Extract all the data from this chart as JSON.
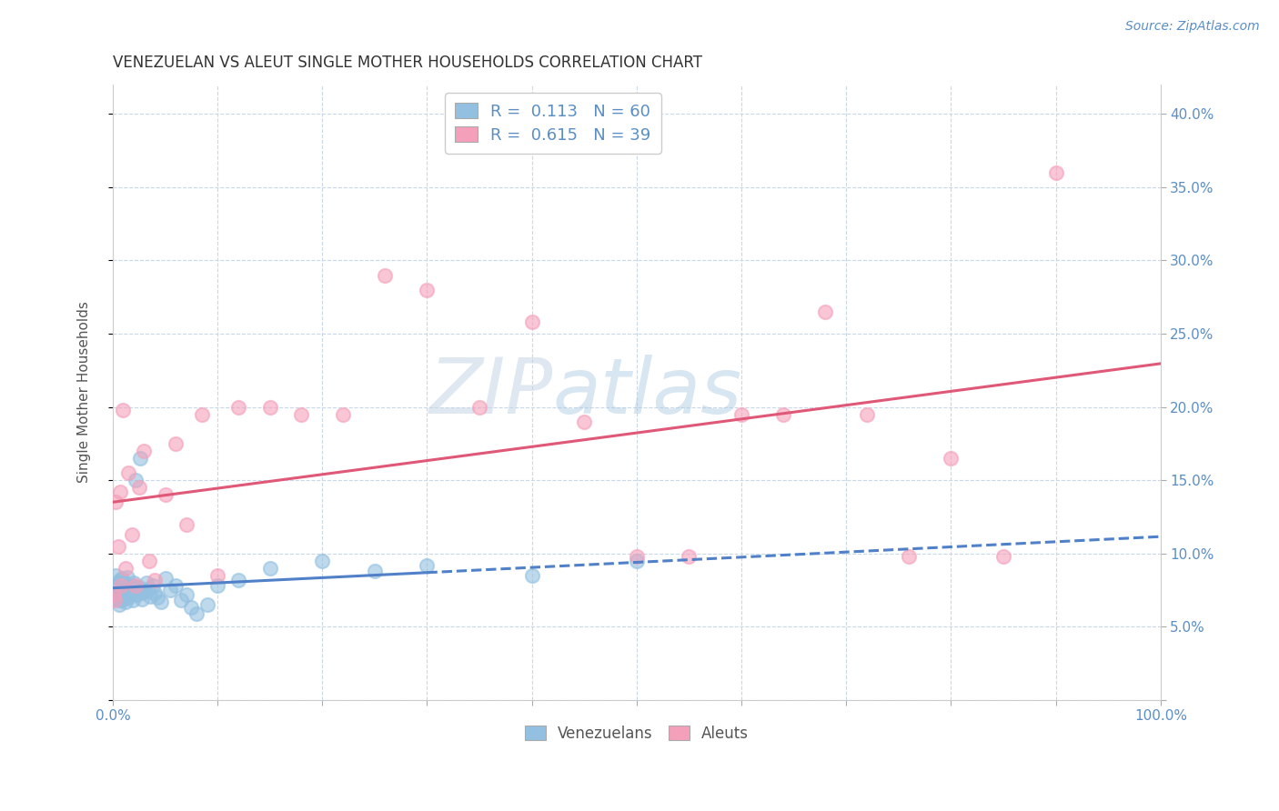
{
  "title": "VENEZUELAN VS ALEUT SINGLE MOTHER HOUSEHOLDS CORRELATION CHART",
  "source": "Source: ZipAtlas.com",
  "ylabel": "Single Mother Households",
  "xlim": [
    0.0,
    1.0
  ],
  "ylim": [
    0.0,
    0.42
  ],
  "xticks": [
    0.0,
    0.1,
    0.2,
    0.3,
    0.4,
    0.5,
    0.6,
    0.7,
    0.8,
    0.9,
    1.0
  ],
  "yticks": [
    0.0,
    0.05,
    0.1,
    0.15,
    0.2,
    0.25,
    0.3,
    0.35,
    0.4
  ],
  "ytick_labels_right": [
    "",
    "5.0%",
    "10.0%",
    "15.0%",
    "20.0%",
    "25.0%",
    "30.0%",
    "35.0%",
    "40.0%"
  ],
  "xtick_labels": [
    "0.0%",
    "",
    "",
    "",
    "",
    "",
    "",
    "",
    "",
    "",
    "100.0%"
  ],
  "venezuelan_color": "#93C0E0",
  "aleut_color": "#F4A0BA",
  "venezuelan_line_color": "#5080C8",
  "aleut_line_color": "#E05878",
  "venezuelan_R": 0.113,
  "venezuelan_N": 60,
  "aleut_R": 0.615,
  "aleut_N": 39,
  "watermark_zip": "ZIP",
  "watermark_atlas": "atlas",
  "background_color": "#ffffff",
  "grid_color": "#c8d8e8",
  "venezuelan_x": [
    0.001,
    0.002,
    0.003,
    0.004,
    0.005,
    0.005,
    0.006,
    0.006,
    0.007,
    0.007,
    0.008,
    0.008,
    0.009,
    0.009,
    0.01,
    0.01,
    0.011,
    0.011,
    0.012,
    0.012,
    0.013,
    0.013,
    0.014,
    0.015,
    0.016,
    0.017,
    0.018,
    0.019,
    0.02,
    0.021,
    0.022,
    0.023,
    0.025,
    0.026,
    0.027,
    0.028,
    0.03,
    0.032,
    0.034,
    0.036,
    0.038,
    0.04,
    0.043,
    0.046,
    0.05,
    0.055,
    0.06,
    0.065,
    0.07,
    0.075,
    0.08,
    0.09,
    0.1,
    0.12,
    0.15,
    0.2,
    0.25,
    0.3,
    0.4,
    0.5
  ],
  "venezuelan_y": [
    0.075,
    0.07,
    0.085,
    0.072,
    0.068,
    0.08,
    0.065,
    0.078,
    0.073,
    0.082,
    0.068,
    0.076,
    0.071,
    0.083,
    0.069,
    0.077,
    0.074,
    0.08,
    0.067,
    0.075,
    0.072,
    0.079,
    0.084,
    0.07,
    0.076,
    0.073,
    0.078,
    0.068,
    0.08,
    0.075,
    0.15,
    0.072,
    0.077,
    0.165,
    0.073,
    0.069,
    0.074,
    0.08,
    0.076,
    0.071,
    0.078,
    0.073,
    0.07,
    0.067,
    0.083,
    0.075,
    0.078,
    0.068,
    0.072,
    0.063,
    0.059,
    0.065,
    0.078,
    0.082,
    0.09,
    0.095,
    0.088,
    0.092,
    0.085,
    0.095
  ],
  "aleut_x": [
    0.001,
    0.002,
    0.003,
    0.005,
    0.007,
    0.008,
    0.01,
    0.012,
    0.015,
    0.018,
    0.022,
    0.025,
    0.03,
    0.035,
    0.04,
    0.05,
    0.06,
    0.07,
    0.085,
    0.1,
    0.12,
    0.15,
    0.18,
    0.22,
    0.26,
    0.3,
    0.35,
    0.4,
    0.45,
    0.5,
    0.55,
    0.6,
    0.64,
    0.68,
    0.72,
    0.76,
    0.8,
    0.85,
    0.9
  ],
  "aleut_y": [
    0.072,
    0.068,
    0.135,
    0.105,
    0.142,
    0.078,
    0.198,
    0.09,
    0.155,
    0.113,
    0.078,
    0.145,
    0.17,
    0.095,
    0.082,
    0.14,
    0.175,
    0.12,
    0.195,
    0.085,
    0.2,
    0.2,
    0.195,
    0.195,
    0.29,
    0.28,
    0.2,
    0.258,
    0.19,
    0.098,
    0.098,
    0.195,
    0.195,
    0.265,
    0.195,
    0.098,
    0.165,
    0.098,
    0.36
  ]
}
